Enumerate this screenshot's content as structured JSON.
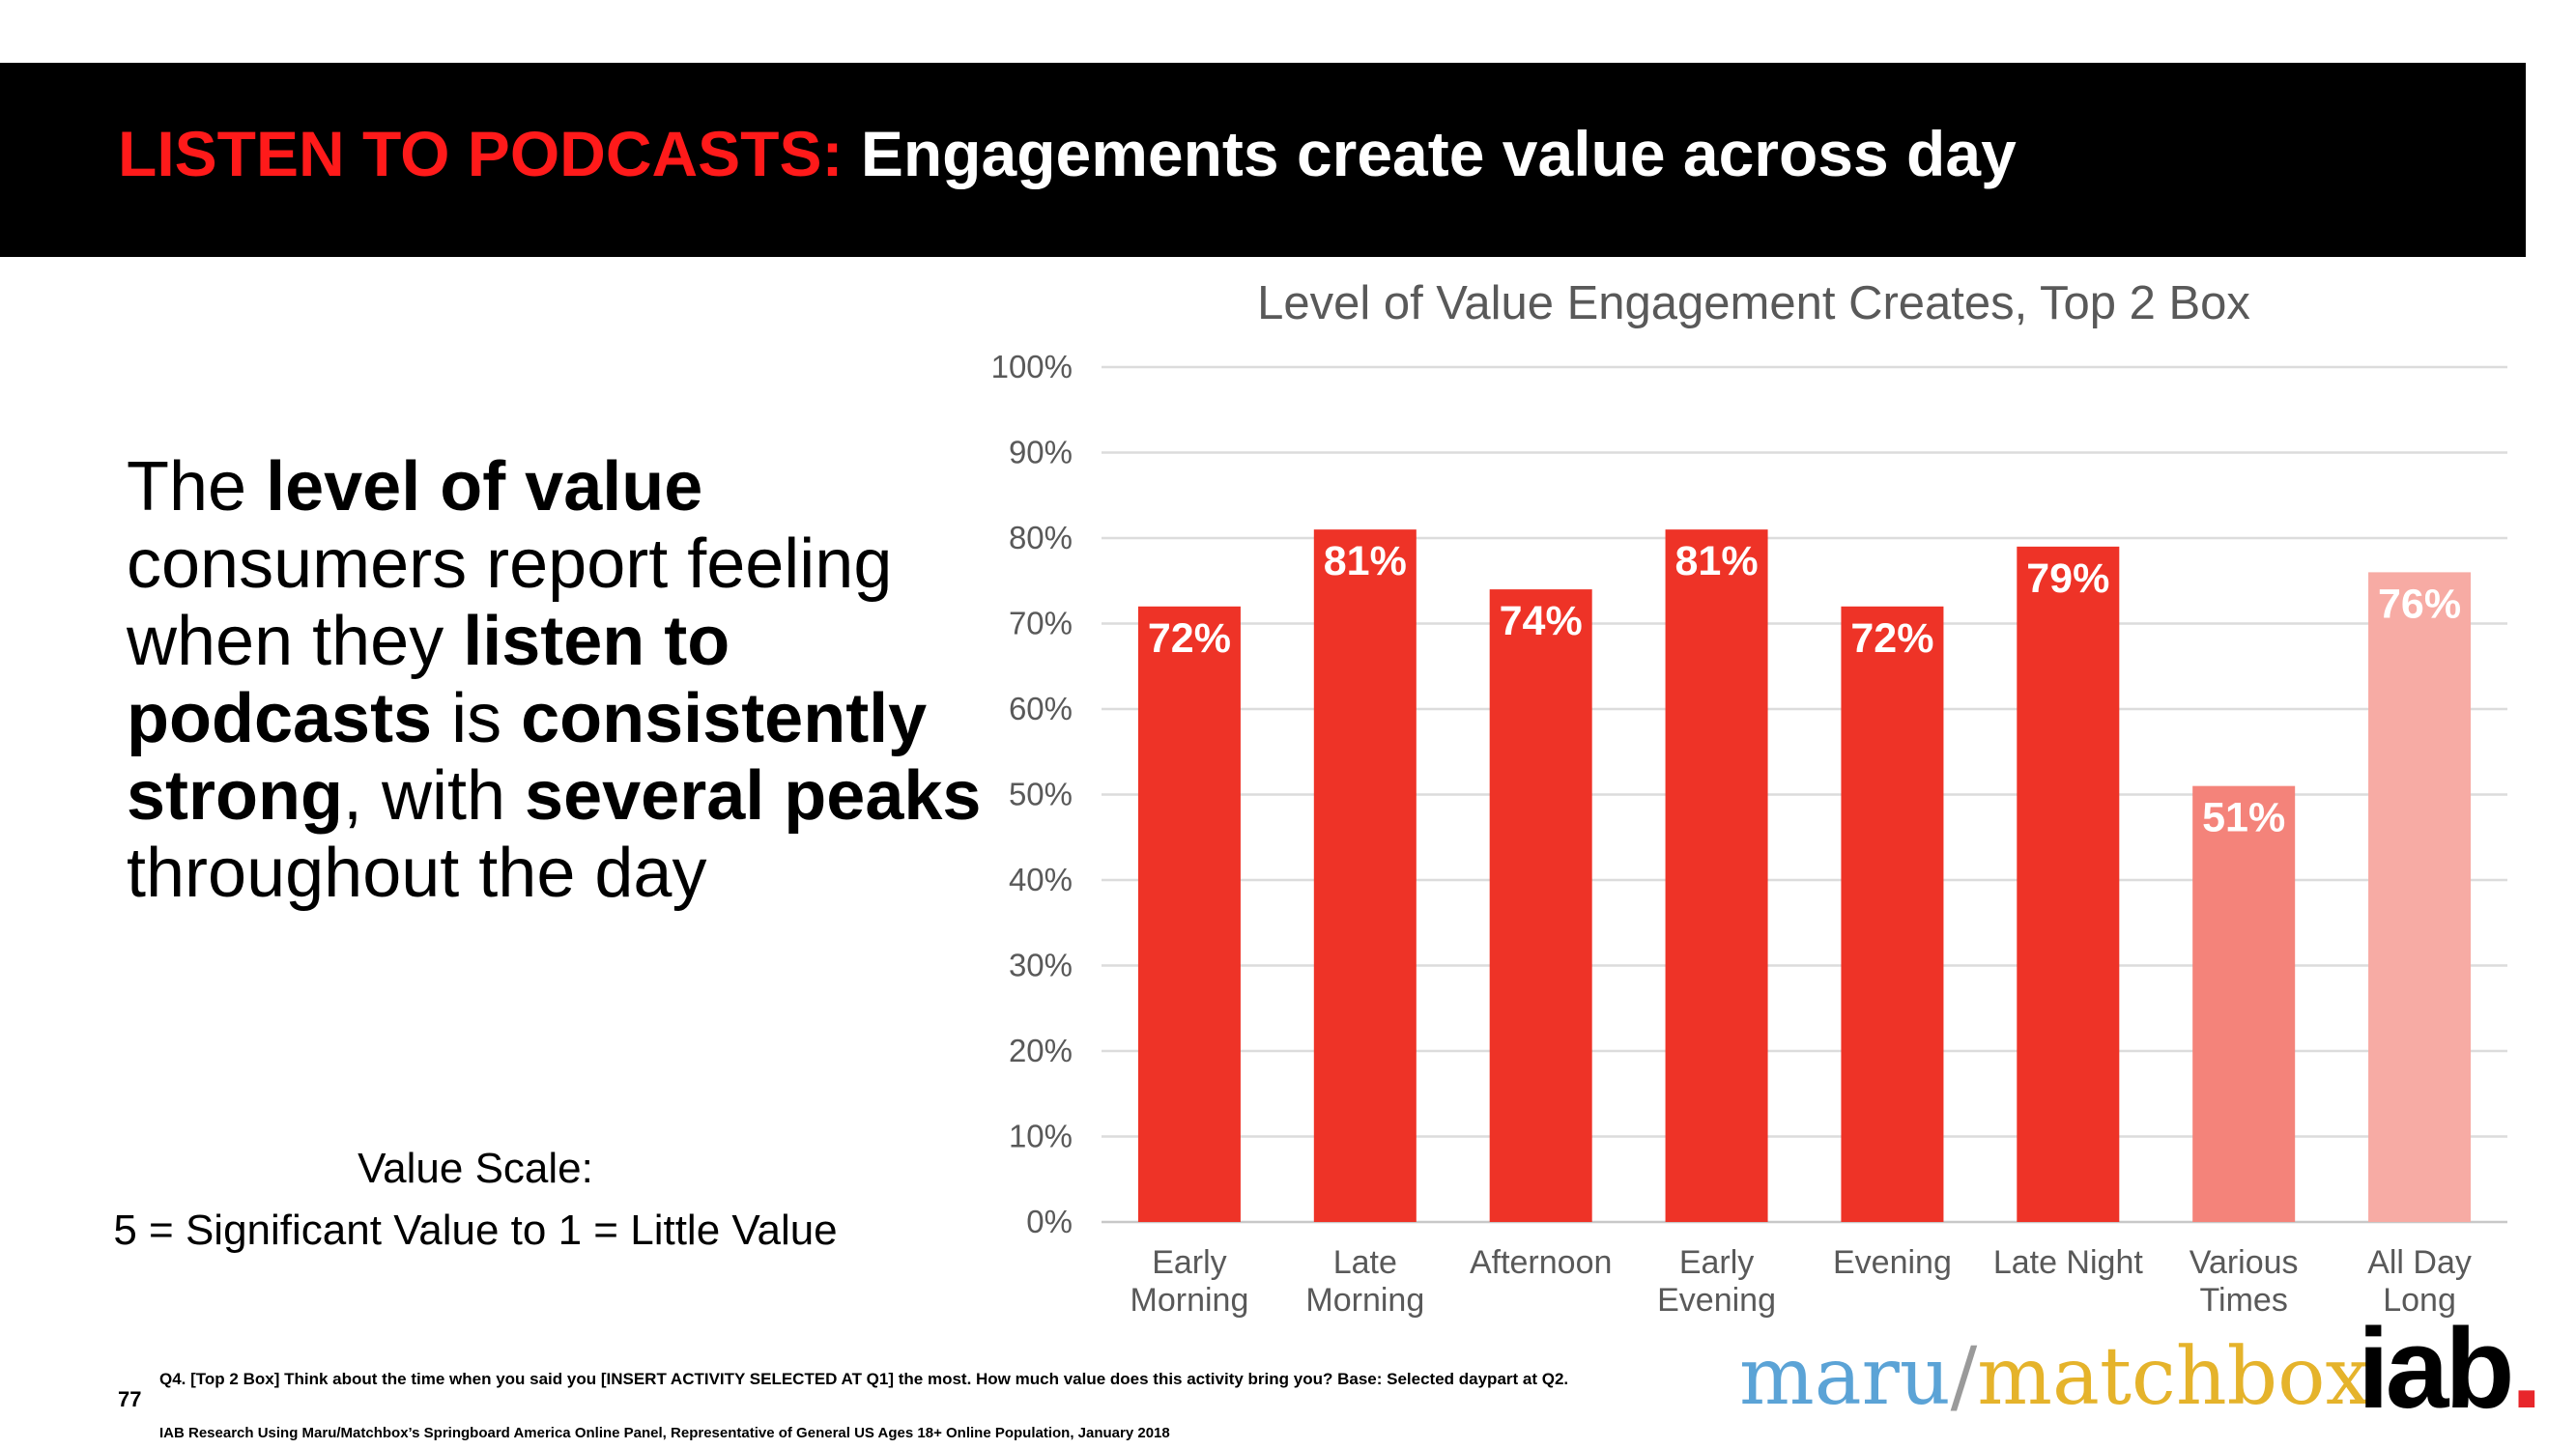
{
  "header": {
    "title_red": "LISTEN TO PODCASTS:",
    "title_white": "Engagements create value across day"
  },
  "headline": {
    "p1": "The ",
    "b1": "level of value",
    "p2": " consumers report feeling when they ",
    "b2": "listen to podcasts",
    "p3": " is ",
    "b3": "consistently strong",
    "p4": ", with ",
    "b4": "several peaks",
    "p5": " throughout the day"
  },
  "value_scale": {
    "title": "Value Scale:",
    "description": "5 = Significant Value to 1 = Little Value"
  },
  "chart_data": {
    "type": "bar",
    "title": "Level of Value Engagement Creates, Top 2 Box",
    "categories": [
      [
        "Early",
        "Morning"
      ],
      [
        "Late",
        "Morning"
      ],
      [
        "Afternoon"
      ],
      [
        "Early",
        "Evening"
      ],
      [
        "Evening"
      ],
      [
        "Late Night"
      ],
      [
        "Various",
        "Times"
      ],
      [
        "All Day",
        "Long"
      ]
    ],
    "values": [
      72,
      81,
      74,
      81,
      72,
      79,
      51,
      76
    ],
    "value_labels": [
      "72%",
      "81%",
      "74%",
      "81%",
      "72%",
      "79%",
      "51%",
      "76%"
    ],
    "colors": [
      "#ee3327",
      "#ee3327",
      "#ee3327",
      "#ee3327",
      "#ee3327",
      "#ee3327",
      "#f4837a",
      "#f7aba4"
    ],
    "ylim": [
      0,
      100
    ],
    "yticks": [
      "0%",
      "10%",
      "20%",
      "30%",
      "40%",
      "50%",
      "60%",
      "70%",
      "80%",
      "90%",
      "100%"
    ],
    "xlabel": "",
    "ylabel": "",
    "grid": true
  },
  "footer": {
    "page_number": "77",
    "question": "Q4. [Top 2 Box] Think about the time when you said you [INSERT ACTIVITY SELECTED AT Q1] the most.  How much value does this activity bring you? Base: Selected daypart at Q2.",
    "source": "IAB Research Using Maru/Matchbox’s Springboard America Online Panel, Representative of General US Ages 18+ Online Population, January 2018"
  },
  "logos": {
    "maru": "maru",
    "slash": "/",
    "matchbox": "matchbox",
    "iab": "iab",
    "iab_dot": "."
  }
}
